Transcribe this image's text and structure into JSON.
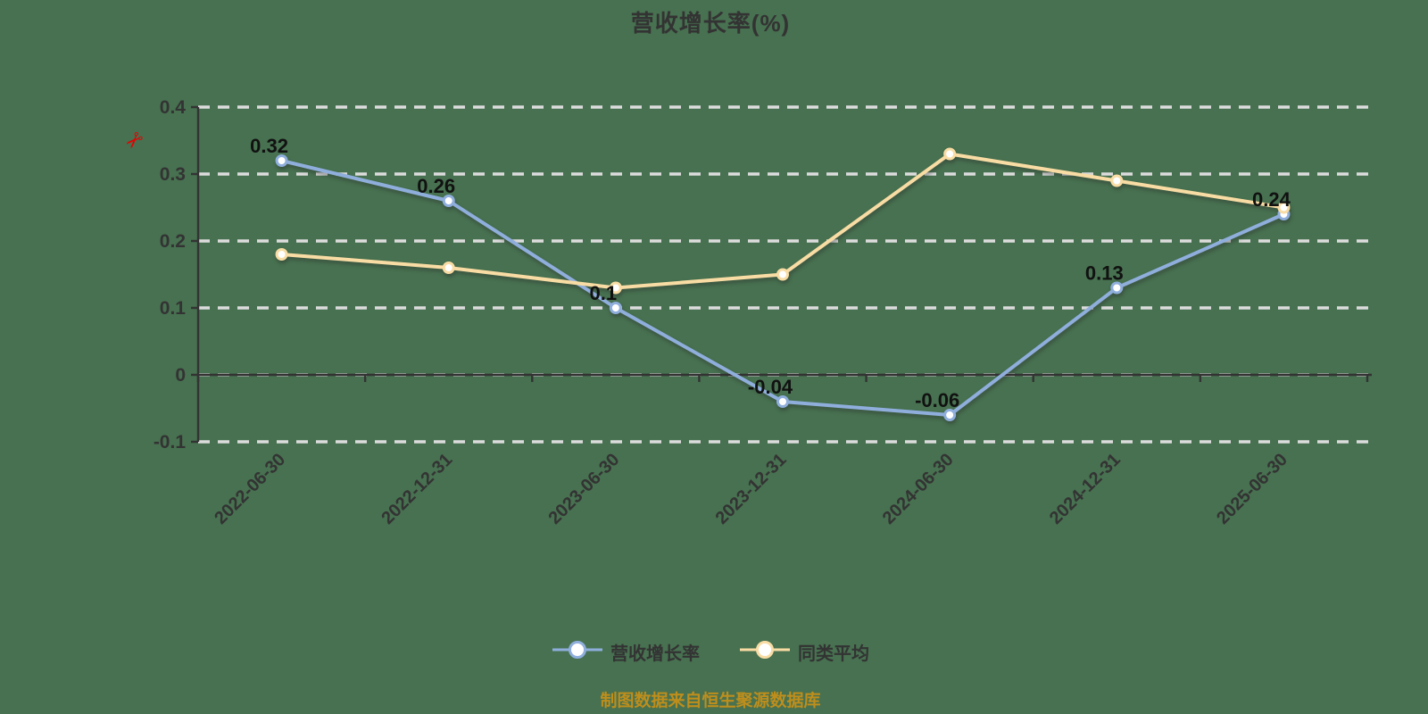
{
  "title": {
    "text": "营收增长率(%)"
  },
  "watermark": {
    "glyph": "✂",
    "color": "#e60000"
  },
  "chart_data": {
    "type": "line",
    "title": "营收增长率(%)",
    "categories": [
      "2022-06-30",
      "2022-12-31",
      "2023-06-30",
      "2023-12-31",
      "2024-06-30",
      "2024-12-31",
      "2025-06-30"
    ],
    "series": [
      {
        "name": "营收增长率",
        "color": "#8FAEDC",
        "values": [
          0.32,
          0.26,
          0.1,
          -0.04,
          -0.06,
          0.13,
          0.24
        ],
        "point_labels": [
          "0.32",
          "0.26",
          "0.1",
          "-0.04",
          "-0.06",
          "0.13",
          "0.24"
        ]
      },
      {
        "name": "同类平均",
        "color": "#F8DCA4",
        "values": [
          0.18,
          0.16,
          0.13,
          0.15,
          0.33,
          0.29,
          0.25
        ],
        "point_labels": null
      }
    ],
    "ylim": [
      -0.1,
      0.4
    ],
    "y_tick_values": [
      -0.1,
      0,
      0.1,
      0.2,
      0.3,
      0.4
    ],
    "y_tick_labels": [
      "-0.1",
      "0",
      "0.1",
      "0.2",
      "0.3",
      "0.4"
    ],
    "grid": "horizontal-dashed",
    "x_axis_on_zero": true,
    "legend_position": "bottom"
  },
  "legend": {
    "items": [
      {
        "label": "营收增长率",
        "color": "#8FAEDC"
      },
      {
        "label": "同类平均",
        "color": "#F8DCA4"
      }
    ]
  },
  "footer": {
    "note": "制图数据来自恒生聚源数据库",
    "color": "#BE8E1C"
  },
  "colors": {
    "background": "#477150",
    "axis": "#333333",
    "gridline": "#dcdcdc",
    "tick_text": "#333333",
    "point_label": "#111111",
    "marker_fill": "#ffffff"
  }
}
